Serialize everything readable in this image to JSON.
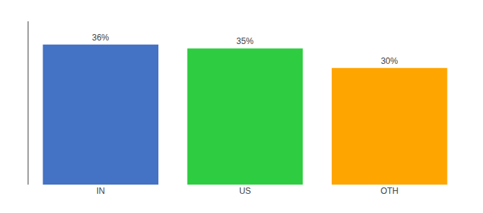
{
  "chart_data": {
    "type": "bar",
    "categories": [
      "IN",
      "US",
      "OTH"
    ],
    "values": [
      36,
      35,
      30
    ],
    "value_labels": [
      "36%",
      "35%",
      "30%"
    ],
    "colors": [
      "#4472C4",
      "#2ECC40",
      "#FFA500"
    ],
    "data_labels": true,
    "ylim": [
      0,
      42
    ],
    "tick_labels": "x",
    "grid": false
  }
}
